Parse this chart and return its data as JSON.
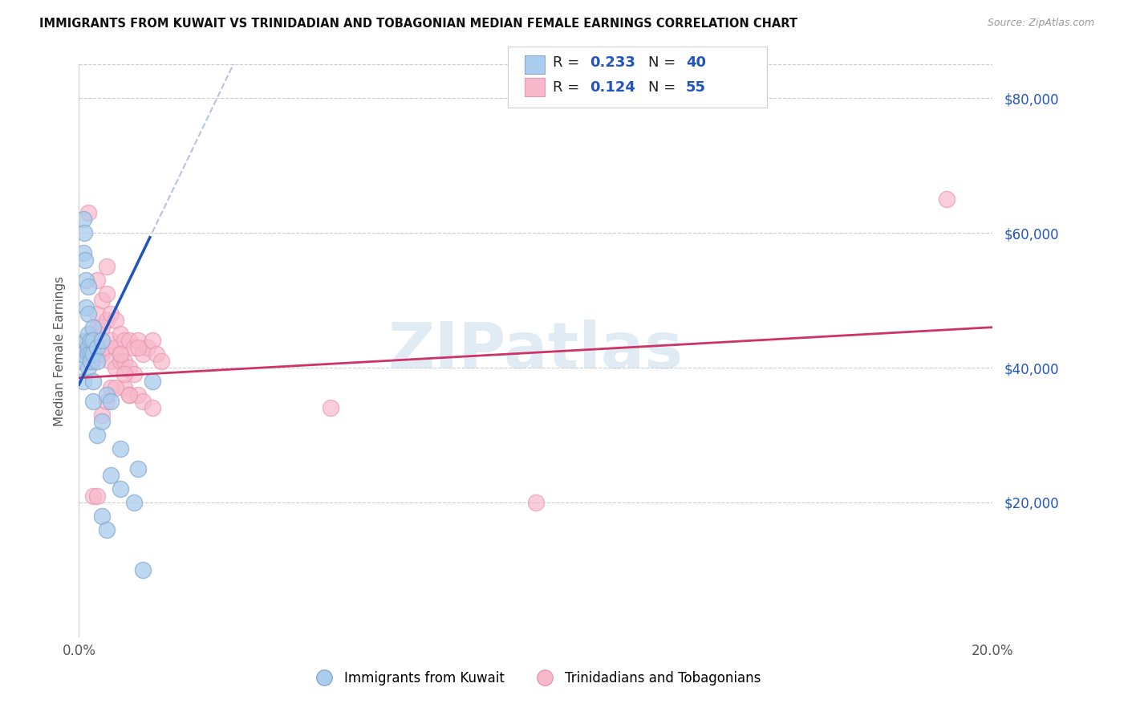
{
  "title": "IMMIGRANTS FROM KUWAIT VS TRINIDADIAN AND TOBAGONIAN MEDIAN FEMALE EARNINGS CORRELATION CHART",
  "source": "Source: ZipAtlas.com",
  "ylabel": "Median Female Earnings",
  "x_min": 0.0,
  "x_max": 0.2,
  "y_min": 0,
  "y_max": 85000,
  "yticks": [
    20000,
    40000,
    60000,
    80000
  ],
  "ytick_labels": [
    "$20,000",
    "$40,000",
    "$60,000",
    "$80,000"
  ],
  "xtick_pos": [
    0.0,
    0.04,
    0.08,
    0.12,
    0.16,
    0.2
  ],
  "xtick_labels": [
    "0.0%",
    "",
    "",
    "",
    "",
    "20.0%"
  ],
  "legend_r1": "0.233",
  "legend_n1": "40",
  "legend_r2": "0.124",
  "legend_n2": "55",
  "legend_label1": "Immigrants from Kuwait",
  "legend_label2": "Trinidadians and Tobagonians",
  "blue_marker_color": "#aaccee",
  "blue_edge_color": "#88aacc",
  "pink_marker_color": "#f8b8cc",
  "pink_edge_color": "#e899b0",
  "line_blue_color": "#2255bb",
  "line_pink_color": "#cc3366",
  "dashed_blue_color": "#8899cc",
  "watermark_color": "#c5d8ea",
  "blue_line_x0": 0.0,
  "blue_line_y0": 37500,
  "blue_line_x1": 0.016,
  "blue_line_y1": 60000,
  "pink_line_x0": 0.0,
  "pink_line_y0": 38500,
  "pink_line_x1": 0.2,
  "pink_line_y1": 46000,
  "blue_x": [
    0.0005,
    0.0008,
    0.001,
    0.001,
    0.001,
    0.0012,
    0.0013,
    0.0015,
    0.0015,
    0.0015,
    0.002,
    0.002,
    0.002,
    0.002,
    0.002,
    0.002,
    0.0025,
    0.0025,
    0.0025,
    0.003,
    0.003,
    0.003,
    0.003,
    0.003,
    0.004,
    0.004,
    0.004,
    0.005,
    0.005,
    0.005,
    0.006,
    0.006,
    0.007,
    0.007,
    0.009,
    0.009,
    0.012,
    0.013,
    0.014,
    0.016
  ],
  "blue_y": [
    41000,
    42000,
    62000,
    57000,
    38000,
    60000,
    56000,
    53000,
    49000,
    44000,
    52000,
    48000,
    45000,
    43000,
    42000,
    40000,
    44000,
    42000,
    41000,
    46000,
    44000,
    42000,
    38000,
    35000,
    43000,
    41000,
    30000,
    44000,
    32000,
    18000,
    36000,
    16000,
    35000,
    24000,
    28000,
    22000,
    20000,
    25000,
    10000,
    38000
  ],
  "pink_x": [
    0.001,
    0.002,
    0.002,
    0.003,
    0.003,
    0.003,
    0.004,
    0.004,
    0.004,
    0.005,
    0.005,
    0.005,
    0.006,
    0.006,
    0.006,
    0.006,
    0.007,
    0.007,
    0.007,
    0.008,
    0.008,
    0.008,
    0.009,
    0.009,
    0.009,
    0.01,
    0.01,
    0.01,
    0.011,
    0.011,
    0.011,
    0.012,
    0.012,
    0.013,
    0.013,
    0.014,
    0.014,
    0.015,
    0.016,
    0.016,
    0.017,
    0.018,
    0.003,
    0.004,
    0.005,
    0.006,
    0.007,
    0.008,
    0.009,
    0.01,
    0.011,
    0.013,
    0.1,
    0.19,
    0.055
  ],
  "pink_y": [
    42000,
    44000,
    63000,
    43000,
    42000,
    41000,
    53000,
    48000,
    46000,
    50000,
    46000,
    42000,
    51000,
    47000,
    43000,
    55000,
    48000,
    44000,
    41000,
    47000,
    43000,
    40000,
    45000,
    42000,
    41000,
    44000,
    41000,
    37000,
    44000,
    40000,
    36000,
    43000,
    39000,
    44000,
    36000,
    42000,
    35000,
    43000,
    44000,
    34000,
    42000,
    41000,
    21000,
    21000,
    33000,
    35000,
    37000,
    37000,
    42000,
    39000,
    36000,
    43000,
    20000,
    65000,
    34000
  ]
}
